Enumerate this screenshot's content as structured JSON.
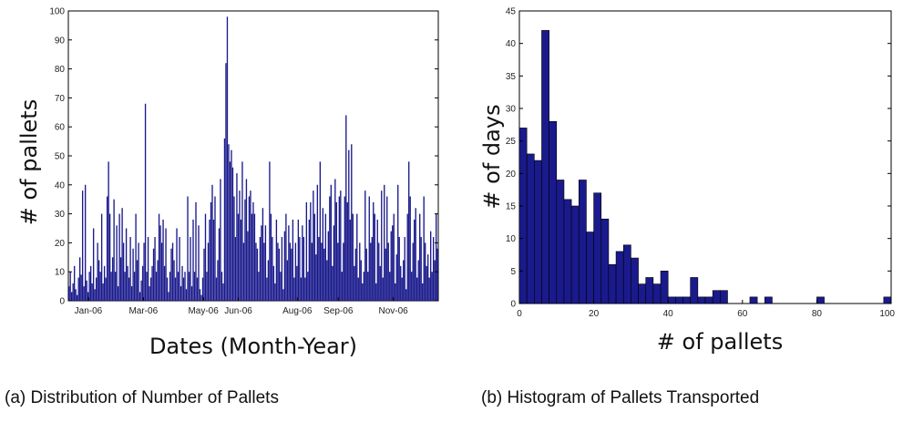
{
  "chart_data": [
    {
      "type": "bar",
      "caption": "(a) Distribution of Number of Pallets",
      "xlabel": "Dates (Month-Year)",
      "ylabel": "# of pallets",
      "ylim": [
        0,
        100
      ],
      "yticks": [
        0,
        10,
        20,
        30,
        40,
        50,
        60,
        70,
        80,
        90,
        100
      ],
      "xtick_labels": [
        "Jan-06",
        "Mar-06",
        "May-06",
        "Jun-06",
        "Aug-06",
        "Sep-06",
        "Nov-06"
      ],
      "xtick_positions": [
        20,
        75,
        135,
        170,
        229,
        270,
        325
      ],
      "x_range": [
        0,
        370
      ],
      "bar_color": "#1a1a8c",
      "values": [
        5,
        10,
        3,
        6,
        12,
        4,
        2,
        8,
        15,
        9,
        38,
        5,
        40,
        7,
        3,
        10,
        12,
        6,
        25,
        4,
        8,
        20,
        14,
        10,
        30,
        6,
        12,
        8,
        36,
        48,
        30,
        10,
        15,
        35,
        10,
        26,
        5,
        30,
        15,
        32,
        20,
        10,
        25,
        12,
        8,
        22,
        5,
        18,
        10,
        30,
        14,
        20,
        3,
        7,
        12,
        20,
        68,
        10,
        22,
        5,
        8,
        12,
        18,
        22,
        10,
        14,
        30,
        26,
        20,
        28,
        12,
        25,
        8,
        3,
        10,
        18,
        20,
        14,
        8,
        25,
        10,
        22,
        5,
        12,
        8,
        10,
        4,
        36,
        10,
        22,
        5,
        28,
        10,
        34,
        8,
        26,
        4,
        2,
        8,
        18,
        30,
        10,
        20,
        28,
        34,
        40,
        28,
        36,
        8,
        14,
        25,
        42,
        10,
        6,
        56,
        82,
        98,
        54,
        48,
        52,
        46,
        36,
        22,
        44,
        30,
        38,
        28,
        48,
        20,
        35,
        42,
        24,
        36,
        38,
        30,
        34,
        30,
        20,
        18,
        10,
        22,
        26,
        32,
        20,
        26,
        8,
        14,
        48,
        30,
        22,
        12,
        6,
        28,
        20,
        18,
        10,
        22,
        4,
        24,
        30,
        14,
        26,
        20,
        18,
        28,
        8,
        20,
        12,
        28,
        22,
        8,
        26,
        22,
        8,
        34,
        10,
        28,
        34,
        20,
        38,
        30,
        16,
        40,
        22,
        48,
        20,
        32,
        18,
        30,
        14,
        24,
        36,
        40,
        12,
        26,
        42,
        34,
        20,
        36,
        38,
        10,
        20,
        36,
        64,
        34,
        52,
        28,
        54,
        30,
        12,
        18,
        30,
        8,
        20,
        14,
        6,
        10,
        38,
        18,
        10,
        36,
        20,
        22,
        34,
        30,
        6,
        28,
        20,
        12,
        38,
        8,
        40,
        18,
        36,
        20,
        10,
        24,
        26,
        30,
        6,
        16,
        40,
        22,
        12,
        8,
        14,
        22,
        4,
        30,
        48,
        36,
        10,
        20,
        28,
        32,
        8,
        14,
        30,
        22,
        6,
        36,
        20,
        12,
        16,
        8,
        24,
        10,
        22,
        14,
        30,
        18
      ]
    },
    {
      "type": "bar",
      "caption": "(b) Histogram of Pallets Transported",
      "xlabel": "# of pallets",
      "ylabel": "# of days",
      "ylim": [
        0,
        45
      ],
      "xlim": [
        0,
        100
      ],
      "yticks": [
        0,
        5,
        10,
        15,
        20,
        25,
        30,
        35,
        40,
        45
      ],
      "xticks": [
        0,
        20,
        40,
        60,
        80,
        100
      ],
      "bin_width": 2,
      "bar_color": "#1a1a8c",
      "bins": [
        {
          "x": 1,
          "count": 27
        },
        {
          "x": 3,
          "count": 23
        },
        {
          "x": 5,
          "count": 22
        },
        {
          "x": 7,
          "count": 42
        },
        {
          "x": 9,
          "count": 28
        },
        {
          "x": 11,
          "count": 19
        },
        {
          "x": 13,
          "count": 16
        },
        {
          "x": 15,
          "count": 15
        },
        {
          "x": 17,
          "count": 19
        },
        {
          "x": 19,
          "count": 11
        },
        {
          "x": 21,
          "count": 17
        },
        {
          "x": 23,
          "count": 13
        },
        {
          "x": 25,
          "count": 6
        },
        {
          "x": 27,
          "count": 8
        },
        {
          "x": 29,
          "count": 9
        },
        {
          "x": 31,
          "count": 7
        },
        {
          "x": 33,
          "count": 3
        },
        {
          "x": 35,
          "count": 4
        },
        {
          "x": 37,
          "count": 3
        },
        {
          "x": 39,
          "count": 5
        },
        {
          "x": 41,
          "count": 1
        },
        {
          "x": 43,
          "count": 1
        },
        {
          "x": 45,
          "count": 1
        },
        {
          "x": 47,
          "count": 4
        },
        {
          "x": 49,
          "count": 1
        },
        {
          "x": 51,
          "count": 1
        },
        {
          "x": 53,
          "count": 2
        },
        {
          "x": 55,
          "count": 2
        },
        {
          "x": 63,
          "count": 1
        },
        {
          "x": 67,
          "count": 1
        },
        {
          "x": 81,
          "count": 1
        },
        {
          "x": 99,
          "count": 1
        }
      ]
    }
  ]
}
